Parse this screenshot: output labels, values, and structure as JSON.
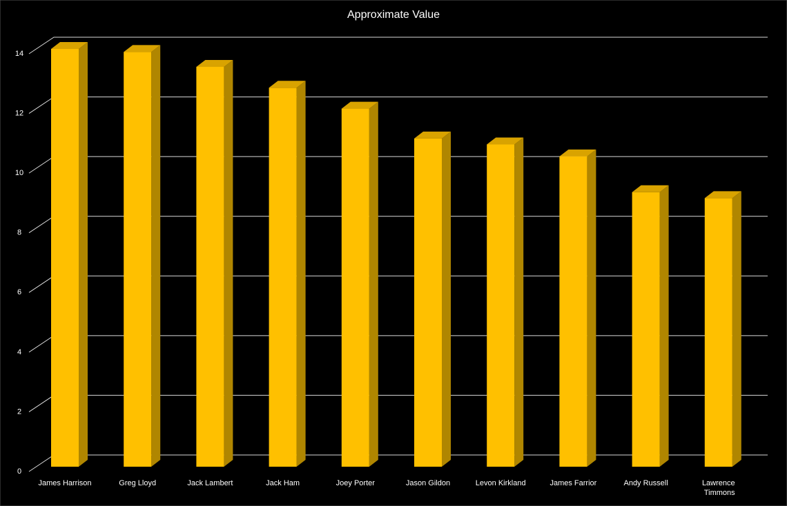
{
  "chart_data": {
    "type": "bar3d",
    "title": "Approximate Value",
    "categories": [
      "James Harrison",
      "Greg Lloyd",
      "Jack Lambert",
      "Jack Ham",
      "Joey Porter",
      "Jason Gildon",
      "Levon Kirkland",
      "James Farrior",
      "Andy Russell",
      "Lawrence Timmons"
    ],
    "values": [
      14,
      13.9,
      13.4,
      12.7,
      12,
      11,
      10.8,
      10.4,
      9.2,
      9
    ],
    "color": "#ffc000",
    "ylim": [
      0,
      14
    ],
    "yticks": [
      0,
      2,
      4,
      6,
      8,
      10,
      12,
      14
    ],
    "grid": true
  }
}
